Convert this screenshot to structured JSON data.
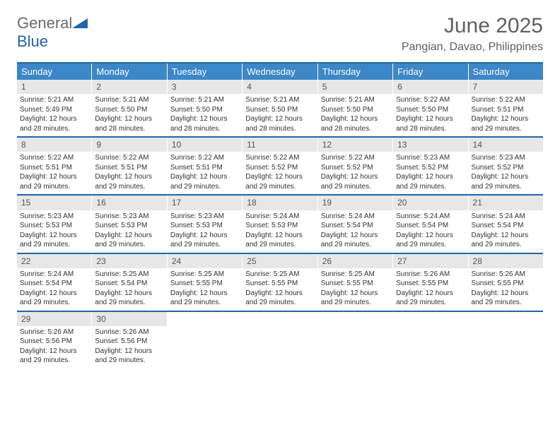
{
  "logo": {
    "word1": "General",
    "word2": "Blue"
  },
  "title": "June 2025",
  "location": "Pangian, Davao, Philippines",
  "colors": {
    "header_bg": "#3b87c8",
    "border": "#2066a8",
    "daynum_bg": "#e7e7e7",
    "text_muted": "#606060"
  },
  "day_names": [
    "Sunday",
    "Monday",
    "Tuesday",
    "Wednesday",
    "Thursday",
    "Friday",
    "Saturday"
  ],
  "weeks": [
    [
      {
        "n": "1",
        "sr": "5:21 AM",
        "ss": "5:49 PM",
        "dl": "12 hours and 28 minutes."
      },
      {
        "n": "2",
        "sr": "5:21 AM",
        "ss": "5:50 PM",
        "dl": "12 hours and 28 minutes."
      },
      {
        "n": "3",
        "sr": "5:21 AM",
        "ss": "5:50 PM",
        "dl": "12 hours and 28 minutes."
      },
      {
        "n": "4",
        "sr": "5:21 AM",
        "ss": "5:50 PM",
        "dl": "12 hours and 28 minutes."
      },
      {
        "n": "5",
        "sr": "5:21 AM",
        "ss": "5:50 PM",
        "dl": "12 hours and 28 minutes."
      },
      {
        "n": "6",
        "sr": "5:22 AM",
        "ss": "5:50 PM",
        "dl": "12 hours and 28 minutes."
      },
      {
        "n": "7",
        "sr": "5:22 AM",
        "ss": "5:51 PM",
        "dl": "12 hours and 29 minutes."
      }
    ],
    [
      {
        "n": "8",
        "sr": "5:22 AM",
        "ss": "5:51 PM",
        "dl": "12 hours and 29 minutes."
      },
      {
        "n": "9",
        "sr": "5:22 AM",
        "ss": "5:51 PM",
        "dl": "12 hours and 29 minutes."
      },
      {
        "n": "10",
        "sr": "5:22 AM",
        "ss": "5:51 PM",
        "dl": "12 hours and 29 minutes."
      },
      {
        "n": "11",
        "sr": "5:22 AM",
        "ss": "5:52 PM",
        "dl": "12 hours and 29 minutes."
      },
      {
        "n": "12",
        "sr": "5:22 AM",
        "ss": "5:52 PM",
        "dl": "12 hours and 29 minutes."
      },
      {
        "n": "13",
        "sr": "5:23 AM",
        "ss": "5:52 PM",
        "dl": "12 hours and 29 minutes."
      },
      {
        "n": "14",
        "sr": "5:23 AM",
        "ss": "5:52 PM",
        "dl": "12 hours and 29 minutes."
      }
    ],
    [
      {
        "n": "15",
        "sr": "5:23 AM",
        "ss": "5:53 PM",
        "dl": "12 hours and 29 minutes."
      },
      {
        "n": "16",
        "sr": "5:23 AM",
        "ss": "5:53 PM",
        "dl": "12 hours and 29 minutes."
      },
      {
        "n": "17",
        "sr": "5:23 AM",
        "ss": "5:53 PM",
        "dl": "12 hours and 29 minutes."
      },
      {
        "n": "18",
        "sr": "5:24 AM",
        "ss": "5:53 PM",
        "dl": "12 hours and 29 minutes."
      },
      {
        "n": "19",
        "sr": "5:24 AM",
        "ss": "5:54 PM",
        "dl": "12 hours and 29 minutes."
      },
      {
        "n": "20",
        "sr": "5:24 AM",
        "ss": "5:54 PM",
        "dl": "12 hours and 29 minutes."
      },
      {
        "n": "21",
        "sr": "5:24 AM",
        "ss": "5:54 PM",
        "dl": "12 hours and 29 minutes."
      }
    ],
    [
      {
        "n": "22",
        "sr": "5:24 AM",
        "ss": "5:54 PM",
        "dl": "12 hours and 29 minutes."
      },
      {
        "n": "23",
        "sr": "5:25 AM",
        "ss": "5:54 PM",
        "dl": "12 hours and 29 minutes."
      },
      {
        "n": "24",
        "sr": "5:25 AM",
        "ss": "5:55 PM",
        "dl": "12 hours and 29 minutes."
      },
      {
        "n": "25",
        "sr": "5:25 AM",
        "ss": "5:55 PM",
        "dl": "12 hours and 29 minutes."
      },
      {
        "n": "26",
        "sr": "5:25 AM",
        "ss": "5:55 PM",
        "dl": "12 hours and 29 minutes."
      },
      {
        "n": "27",
        "sr": "5:26 AM",
        "ss": "5:55 PM",
        "dl": "12 hours and 29 minutes."
      },
      {
        "n": "28",
        "sr": "5:26 AM",
        "ss": "5:55 PM",
        "dl": "12 hours and 29 minutes."
      }
    ],
    [
      {
        "n": "29",
        "sr": "5:26 AM",
        "ss": "5:56 PM",
        "dl": "12 hours and 29 minutes."
      },
      {
        "n": "30",
        "sr": "5:26 AM",
        "ss": "5:56 PM",
        "dl": "12 hours and 29 minutes."
      },
      null,
      null,
      null,
      null,
      null
    ]
  ],
  "labels": {
    "sunrise": "Sunrise: ",
    "sunset": "Sunset: ",
    "daylight": "Daylight: "
  }
}
